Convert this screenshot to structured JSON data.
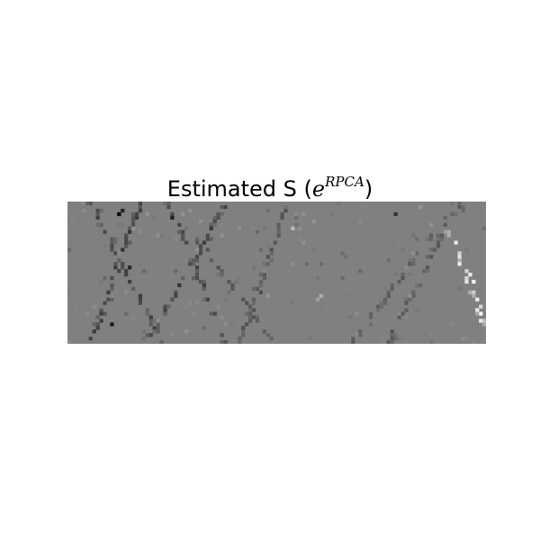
{
  "chart_data": {
    "type": "heatmap",
    "title": {
      "prefix": "Estimated S (",
      "symbol": "e",
      "superscript": "RPCA",
      "suffix": ")"
    },
    "xlabel": "",
    "ylabel": "",
    "colormap": "gray",
    "grid": false,
    "legend": "none",
    "shape": {
      "rows": 40,
      "cols": 118
    },
    "value_range": [
      -1,
      1
    ],
    "background_value": 0,
    "features": [
      {
        "kind": "diagonal",
        "x_start": 20,
        "x_end": 6,
        "row_start": 0,
        "row_end": 39,
        "sign": -1,
        "strength": 0.45
      },
      {
        "kind": "diagonal",
        "x_start": 6,
        "x_end": 26,
        "row_start": 0,
        "row_end": 39,
        "sign": -1,
        "strength": 0.4
      },
      {
        "kind": "diagonal",
        "x_start": 28,
        "x_end": 44,
        "row_start": 0,
        "row_end": 39,
        "sign": -1,
        "strength": 0.4
      },
      {
        "kind": "diagonal",
        "x_start": 44,
        "x_end": 22,
        "row_start": 0,
        "row_end": 39,
        "sign": -1,
        "strength": 0.45
      },
      {
        "kind": "diagonal",
        "x_start": 62,
        "x_end": 48,
        "row_start": 0,
        "row_end": 39,
        "sign": -1,
        "strength": 0.3
      },
      {
        "kind": "diagonal",
        "x_start": 36,
        "x_end": 58,
        "row_start": 10,
        "row_end": 39,
        "sign": -1,
        "strength": 0.3
      },
      {
        "kind": "diagonal",
        "x_start": 110,
        "x_end": 90,
        "row_start": 0,
        "row_end": 39,
        "sign": -1,
        "strength": 0.3
      },
      {
        "kind": "diagonal",
        "x_start": 106,
        "x_end": 80,
        "row_start": 4,
        "row_end": 39,
        "sign": -1,
        "strength": 0.25
      },
      {
        "kind": "diagonal",
        "x_start": 107,
        "x_end": 117,
        "row_start": 8,
        "row_end": 34,
        "sign": 1,
        "strength": 0.7
      }
    ],
    "outliers": [
      {
        "row": 3,
        "col": 14,
        "value": -0.95
      },
      {
        "row": 2,
        "col": 15,
        "value": -0.7
      },
      {
        "row": 4,
        "col": 29,
        "value": -0.75
      },
      {
        "row": 7,
        "col": 63,
        "value": 0.45
      },
      {
        "row": 26,
        "col": 71,
        "value": 0.35
      },
      {
        "row": 27,
        "col": 70,
        "value": 0.25
      },
      {
        "row": 3,
        "col": 92,
        "value": -0.6
      },
      {
        "row": 20,
        "col": 113,
        "value": 0.85
      },
      {
        "row": 22,
        "col": 114,
        "value": 0.9
      },
      {
        "row": 31,
        "col": 116,
        "value": 0.95
      },
      {
        "row": 18,
        "col": 17,
        "value": -0.7
      },
      {
        "row": 34,
        "col": 12,
        "value": -0.8
      }
    ]
  }
}
